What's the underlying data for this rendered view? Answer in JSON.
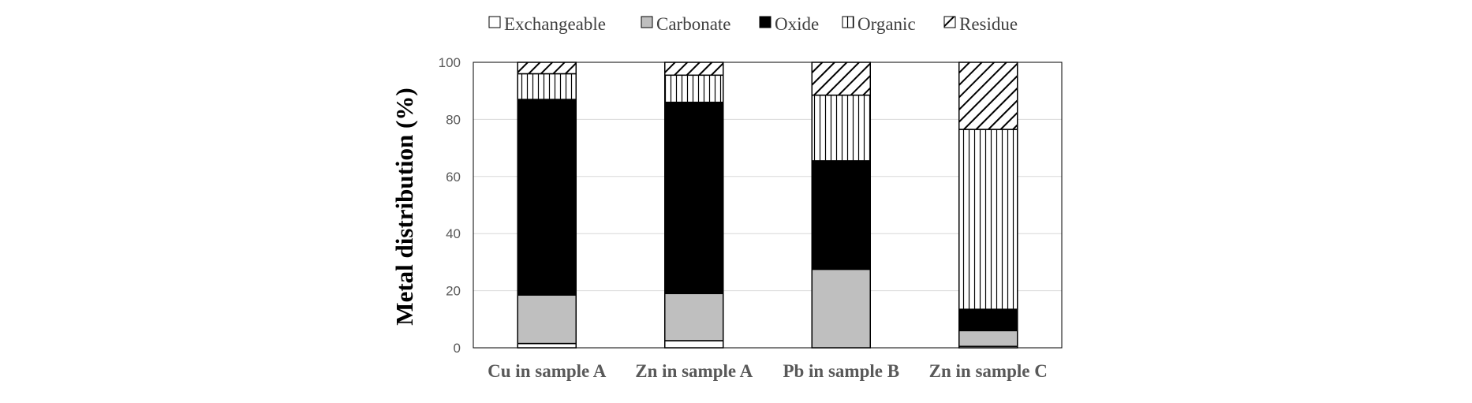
{
  "chart_data": {
    "type": "bar",
    "stacked": true,
    "title": "",
    "xlabel": "",
    "ylabel": "Metal distribution (%)",
    "ylim": [
      0,
      100
    ],
    "yticks": [
      "0",
      "20",
      "40",
      "60",
      "80",
      "100"
    ],
    "grid": true,
    "legend_position": "top",
    "categories": [
      "Cu in sample A",
      "Zn in sample A",
      "Pb in sample B",
      "Zn in sample C"
    ],
    "series": [
      {
        "name": "Exchangeable",
        "pattern": "white",
        "values": [
          1.5,
          2.5,
          0,
          0.5
        ]
      },
      {
        "name": "Carbonate",
        "pattern": "gray",
        "values": [
          17,
          16.5,
          27.5,
          5.5
        ]
      },
      {
        "name": "Oxide",
        "pattern": "black",
        "values": [
          68.5,
          67,
          38,
          7.5
        ]
      },
      {
        "name": "Organic",
        "pattern": "vertical-lines",
        "values": [
          9,
          9.5,
          23,
          63
        ]
      },
      {
        "name": "Residue",
        "pattern": "diagonal-lines",
        "values": [
          4,
          4.5,
          11.5,
          23.5
        ]
      }
    ],
    "colors": {
      "fill_gray": "#bfbfbf",
      "fill_black": "#000000",
      "grid": "#d9d9d9",
      "axis_text": "#595959"
    }
  }
}
